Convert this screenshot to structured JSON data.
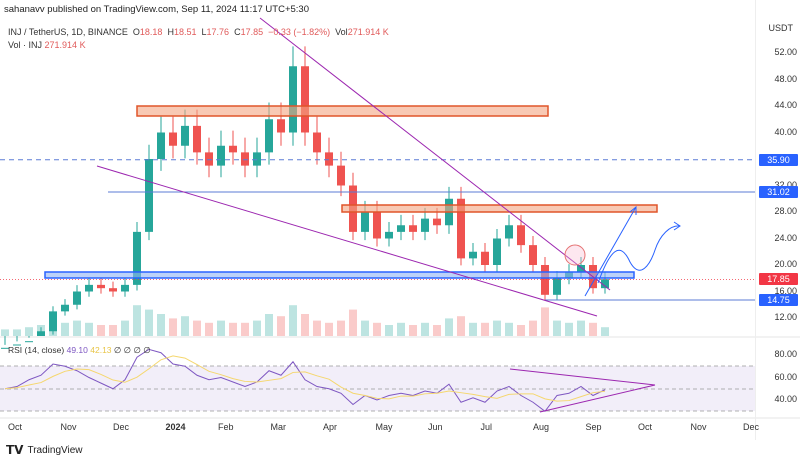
{
  "header": {
    "published": "sahanavv published on TradingView.com, Sep 11, 2024 11:17 UTC+5:30"
  },
  "legend": {
    "symbol": "INJ / TetherUS, 1D, BINANCE",
    "o_label": "O",
    "o": "18.18",
    "h_label": "H",
    "h": "18.51",
    "l_label": "L",
    "l": "17.76",
    "c_label": "C",
    "c": "17.85",
    "change": "−0.33 (−1.82%)",
    "vol_label": "Vol",
    "vol": "271.914 K",
    "vol2_label": "Vol · INJ",
    "vol2": "271.914 K"
  },
  "rsi": {
    "label": "RSI (14, close)",
    "v1": "49.10",
    "v2": "42.13",
    "placeholders": "∅ ∅ ∅ ∅"
  },
  "price_axis": {
    "currency": "USDT",
    "ticks": [
      "52.00",
      "48.00",
      "44.00",
      "40.00",
      "32.00",
      "28.00",
      "24.00",
      "20.00",
      "16.00",
      "12.00"
    ],
    "tags": [
      {
        "value": "35.90",
        "color": "#2962ff"
      },
      {
        "value": "31.02",
        "color": "#2962ff"
      },
      {
        "value": "17.85",
        "color": "#f23645"
      },
      {
        "value": "14.75",
        "color": "#2962ff"
      }
    ],
    "rsi_ticks": [
      "80.00",
      "60.00",
      "40.00"
    ]
  },
  "time_axis": [
    "Oct",
    "Nov",
    "Dec",
    "2024",
    "Feb",
    "Mar",
    "Apr",
    "May",
    "Jun",
    "Jul",
    "Aug",
    "Sep",
    "Oct",
    "Nov",
    "Dec"
  ],
  "footer": {
    "brand": "TradingView"
  },
  "chart_data": {
    "type": "candlestick",
    "start": "2023-10-02",
    "ylim": [
      12,
      52
    ],
    "close": [
      7.5,
      8,
      8.5,
      10,
      13,
      14,
      16,
      17,
      16.5,
      16,
      17,
      25,
      36,
      40,
      38,
      41,
      37,
      35,
      38,
      37,
      35,
      37,
      42,
      40,
      50,
      40,
      37,
      35,
      32,
      25,
      28,
      24,
      25,
      26,
      25,
      27,
      26,
      30,
      21,
      22,
      20,
      24,
      26,
      23,
      20,
      15.5,
      18,
      19,
      20,
      16.5,
      17.85
    ],
    "volume": [
      3,
      3,
      4,
      5,
      8,
      6,
      7,
      6,
      5,
      5,
      7,
      14,
      12,
      10,
      8,
      9,
      7,
      6,
      7,
      6,
      6,
      7,
      10,
      9,
      14,
      10,
      7,
      6,
      7,
      12,
      7,
      6,
      5,
      6,
      5,
      6,
      5,
      8,
      9,
      6,
      6,
      7,
      6,
      5,
      7,
      13,
      7,
      6,
      7,
      6,
      4
    ],
    "rsi": [
      50,
      52,
      58,
      62,
      72,
      70,
      66,
      60,
      55,
      50,
      58,
      78,
      85,
      82,
      72,
      70,
      62,
      58,
      60,
      56,
      52,
      56,
      66,
      62,
      74,
      58,
      52,
      50,
      46,
      36,
      44,
      40,
      44,
      46,
      44,
      48,
      46,
      54,
      38,
      42,
      38,
      48,
      52,
      44,
      38,
      30,
      44,
      46,
      52,
      44,
      49.1
    ],
    "levels": {
      "resistance_dashed": 35.9,
      "resistance": 31.02,
      "last": 17.85,
      "support": 14.75
    }
  }
}
